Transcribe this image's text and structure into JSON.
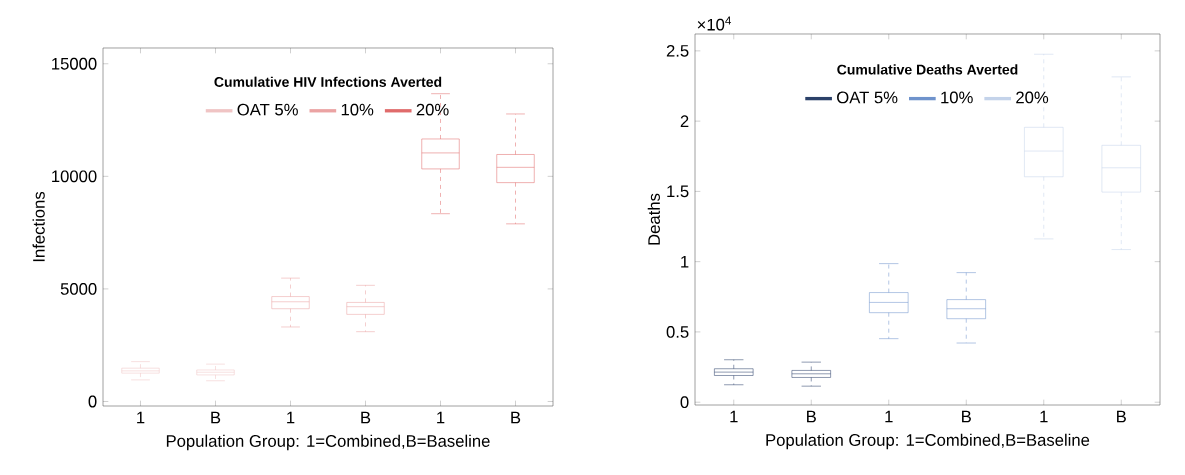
{
  "chart_data": [
    {
      "type": "box",
      "legend_title": "Cumulative HIV Infections Averted",
      "xlabel": "Population Group: 1=Combined,B=Baseline",
      "ylabel": "Infections",
      "categories": [
        "1",
        "B",
        "1",
        "B",
        "1",
        "B"
      ],
      "ylim": [
        -200,
        15700
      ],
      "yticks": [
        0,
        5000,
        10000,
        15000
      ],
      "legend": "top",
      "grid": false,
      "series": [
        {
          "name": "OAT 5%",
          "color": "#f0c4c4",
          "boxes": [
            {
              "low": 960,
              "q1": 1260,
              "median": 1360,
              "q3": 1480,
              "high": 1770
            },
            {
              "low": 920,
              "q1": 1180,
              "median": 1300,
              "q3": 1400,
              "high": 1660
            },
            null,
            null,
            null,
            null
          ]
        },
        {
          "name": "10%",
          "color": "#eba3a3",
          "boxes": [
            null,
            null,
            {
              "low": 3310,
              "q1": 4120,
              "median": 4430,
              "q3": 4660,
              "high": 5480
            },
            {
              "low": 3100,
              "q1": 3870,
              "median": 4210,
              "q3": 4400,
              "high": 5160
            },
            null,
            null
          ]
        },
        {
          "name": "20%",
          "color": "#e06b6b",
          "boxes": [
            null,
            null,
            null,
            null,
            {
              "low": 8340,
              "q1": 10330,
              "median": 11040,
              "q3": 11660,
              "high": 13670
            },
            {
              "low": 7890,
              "q1": 9720,
              "median": 10400,
              "q3": 10970,
              "high": 12770
            }
          ]
        }
      ]
    },
    {
      "type": "box",
      "legend_title": "Cumulative Deaths Averted",
      "xlabel": "Population Group: 1=Combined,B=Baseline",
      "ylabel": "Deaths",
      "annotations": [
        "×10$^{4}$"
      ],
      "categories": [
        "1",
        "B",
        "1",
        "B",
        "1",
        "B"
      ],
      "ylim": [
        -0.02,
        2.62
      ],
      "yticks": [
        0,
        0.5,
        1,
        1.5,
        2,
        2.5
      ],
      "legend": "top",
      "grid": false,
      "series": [
        {
          "name": "OAT 5%",
          "color": "#2b4169",
          "boxes": [
            {
              "low": 0.124,
              "q1": 0.19,
              "median": 0.214,
              "q3": 0.238,
              "high": 0.302
            },
            {
              "low": 0.114,
              "q1": 0.176,
              "median": 0.202,
              "q3": 0.226,
              "high": 0.285
            },
            null,
            null,
            null,
            null
          ]
        },
        {
          "name": "10%",
          "color": "#6f93cc",
          "boxes": [
            null,
            null,
            {
              "low": 0.452,
              "q1": 0.637,
              "median": 0.71,
              "q3": 0.78,
              "high": 0.986
            },
            {
              "low": 0.421,
              "q1": 0.594,
              "median": 0.665,
              "q3": 0.73,
              "high": 0.922
            },
            null,
            null
          ]
        },
        {
          "name": "20%",
          "color": "#c4d3ea",
          "boxes": [
            null,
            null,
            null,
            null,
            {
              "low": 1.162,
              "q1": 1.604,
              "median": 1.787,
              "q3": 1.956,
              "high": 2.476
            },
            {
              "low": 1.086,
              "q1": 1.495,
              "median": 1.668,
              "q3": 1.828,
              "high": 2.315
            }
          ]
        }
      ]
    }
  ]
}
